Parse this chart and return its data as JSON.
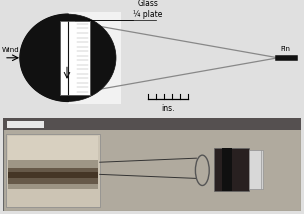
{
  "bg_color": "#e0e0e0",
  "top_bg": "#f2f2f2",
  "bottom_bg": "#b8b8b8",
  "label_glass": "Glass\n¼ plate",
  "label_wind": "Wind",
  "label_fin": "Fin",
  "label_ins": "ins.",
  "black": "#111111",
  "white": "#ffffff",
  "gray_line": "#888888",
  "dark_gray": "#555555",
  "photo_bg": "#b0aa9e",
  "photo_inset_bg": "#ccc8bc",
  "photo_dark": "#484030",
  "photo_mid": "#807868"
}
